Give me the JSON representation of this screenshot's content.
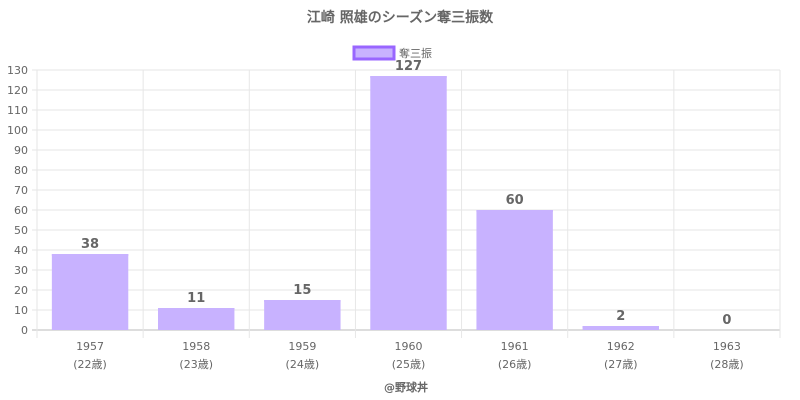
{
  "title": "江崎 照雄のシーズン奪三振数",
  "footer": "@野球丼",
  "chart_data": {
    "type": "bar",
    "categories": [
      "1957",
      "1958",
      "1959",
      "1960",
      "1961",
      "1962",
      "1963"
    ],
    "sub_labels": [
      "(22歳)",
      "(23歳)",
      "(24歳)",
      "(25歳)",
      "(26歳)",
      "(27歳)",
      "(28歳)"
    ],
    "series": [
      {
        "name": "奪三振",
        "values": [
          38,
          11,
          15,
          127,
          60,
          2,
          0
        ]
      }
    ],
    "ylim": [
      0,
      130
    ],
    "y_ticks": [
      0,
      10,
      20,
      30,
      40,
      50,
      60,
      70,
      80,
      90,
      100,
      110,
      120,
      130
    ],
    "legend_position": "top",
    "grid": true,
    "colors": {
      "bar_fill": "#c8b2ff",
      "bar_stroke": "#9966ff",
      "grid": "#e6e6e6",
      "text": "#666666"
    }
  }
}
